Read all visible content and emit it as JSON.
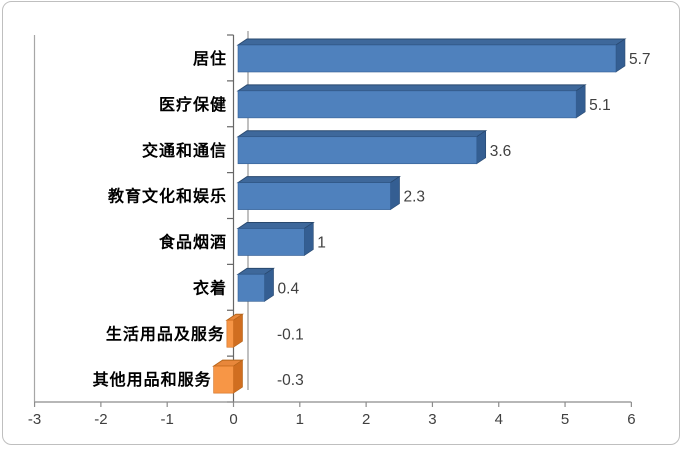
{
  "chart_data": {
    "type": "bar",
    "orientation": "horizontal",
    "style": "3d-excel",
    "title": "",
    "xlabel": "",
    "ylabel": "",
    "grid": false,
    "legend": false,
    "categories": [
      "居住",
      "医疗保健",
      "交通和通信",
      "教育文化和娱乐",
      "食品烟酒",
      "衣着",
      "生活用品及服务",
      "其他用品和服务"
    ],
    "values": [
      5.7,
      5.1,
      3.6,
      2.3,
      1,
      0.4,
      -0.1,
      -0.3
    ],
    "value_labels": [
      "5.7",
      "5.1",
      "3.6",
      "2.3",
      "1",
      "0.4",
      "-0.1",
      "-0.3"
    ],
    "xlim": [
      -3,
      6
    ],
    "x_ticks": [
      "-3",
      "-2",
      "-1",
      "0",
      "1",
      "2",
      "3",
      "4",
      "5",
      "6"
    ],
    "colors": {
      "positive_front": "#4F81BD",
      "positive_top": "#3E689B",
      "positive_top_edge": "#28486E",
      "positive_side": "#345E92",
      "negative_front": "#F79646",
      "negative_top": "#E8873B",
      "negative_top_edge": "#B5651A",
      "negative_side": "#D06E20",
      "axis_line": "#8C8C8C",
      "category_axis_line": "#666666",
      "zero_line": "#A6A6A6",
      "plot_left_line": "#A6A6A6",
      "chart_border": "#BFBFBF",
      "value_label_color": "#404040",
      "tick_label_color": "#404040",
      "category_label_color": "#000000",
      "background": "#FFFFFF"
    }
  }
}
